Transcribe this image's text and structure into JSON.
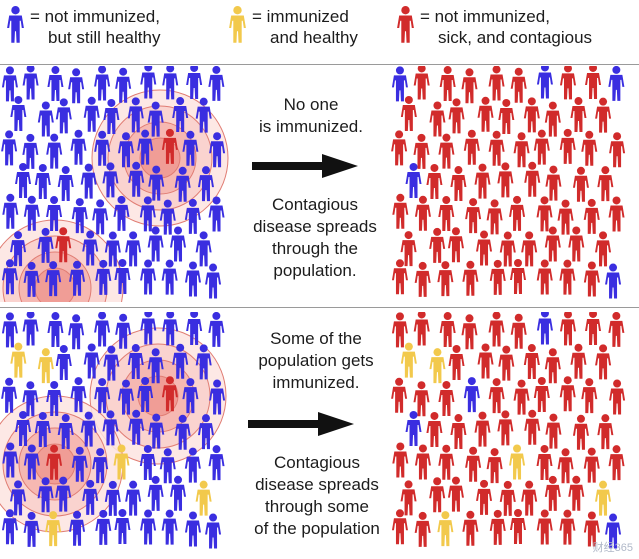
{
  "legend": {
    "items": [
      {
        "id": "not-immunized-healthy",
        "color": "#3a2ee0",
        "icon": "person-icon",
        "line1": "= not immunized,",
        "line2": "but still healthy"
      },
      {
        "id": "immunized-healthy",
        "color": "#f2c94c",
        "icon": "person-icon",
        "line1": "= immunized",
        "line2": "and healthy"
      },
      {
        "id": "not-immunized-sick",
        "color": "#d12b2b",
        "icon": "person-icon",
        "line1": "= not immunized,",
        "line2": "sick, and contagious"
      }
    ]
  },
  "panels": [
    {
      "id": "no-immunization",
      "caption_top": [
        "No one",
        "is immunized."
      ],
      "caption_bottom": [
        "Contagious",
        "disease spreads",
        "through the",
        "population."
      ]
    },
    {
      "id": "some-immunization",
      "caption_top": [
        "Some of the",
        "population gets",
        "immunized."
      ],
      "caption_bottom": [
        "Contagious",
        "disease spreads",
        "through some",
        "of the population"
      ]
    }
  ],
  "watermark": "财经365"
}
